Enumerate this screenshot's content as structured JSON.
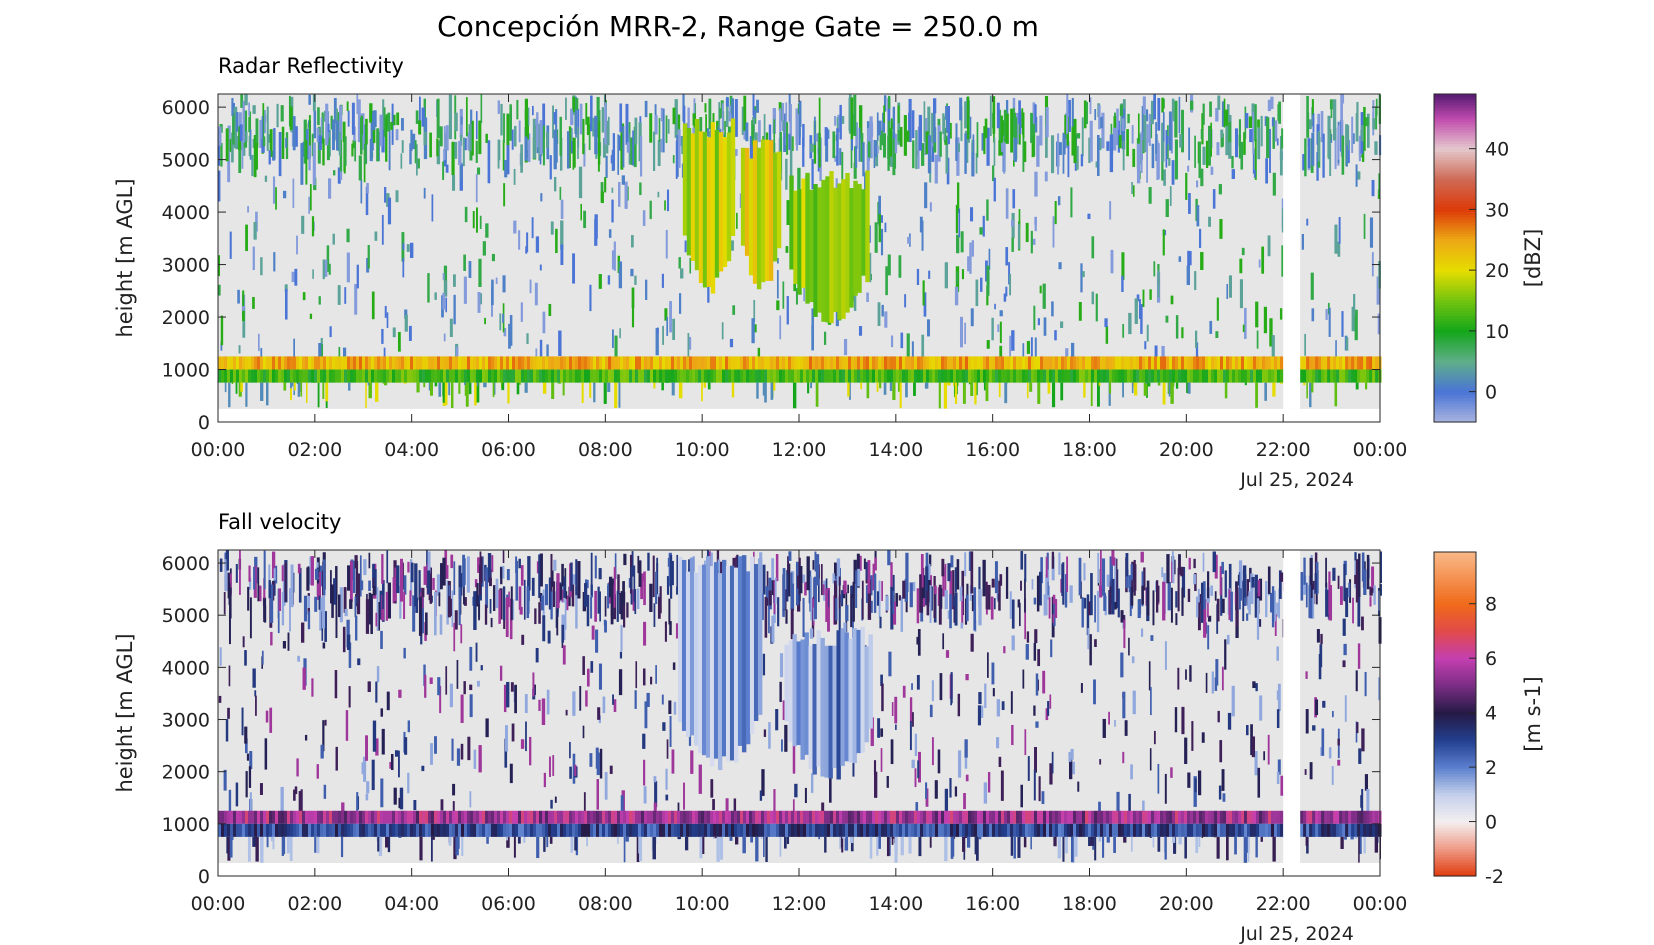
{
  "figure_title": "Concepción MRR-2, Range Gate = 250.0 m",
  "chart_data": [
    {
      "type": "heatmap",
      "title": "Radar Reflectivity",
      "ylabel": "height [m AGL]",
      "ylim": [
        0,
        6250
      ],
      "yticks": [
        0,
        1000,
        2000,
        3000,
        4000,
        5000,
        6000
      ],
      "xlim_hours": [
        0,
        24
      ],
      "xtick_labels": [
        "00:00",
        "02:00",
        "04:00",
        "06:00",
        "08:00",
        "10:00",
        "12:00",
        "14:00",
        "16:00",
        "18:00",
        "20:00",
        "22:00",
        "00:00"
      ],
      "date_label": "Jul 25, 2024",
      "colorbar": {
        "label": "[dBZ]",
        "range": [
          -5,
          49
        ],
        "ticks": [
          0,
          10,
          20,
          30,
          40
        ],
        "colors": [
          [
            -5,
            "#a9b4df"
          ],
          [
            0,
            "#4a74d6"
          ],
          [
            5,
            "#5fae8a"
          ],
          [
            10,
            "#14a61a"
          ],
          [
            15,
            "#73c40f"
          ],
          [
            20,
            "#e6dc00"
          ],
          [
            25,
            "#eda815"
          ],
          [
            30,
            "#dd3a08"
          ],
          [
            35,
            "#ce6a55"
          ],
          [
            40,
            "#e4c8cc"
          ],
          [
            45,
            "#c04aae"
          ],
          [
            49,
            "#551a72"
          ]
        ]
      },
      "features": [
        {
          "kind": "melting_layer",
          "x": [
            0,
            22
          ],
          "y": [
            1000,
            1250
          ],
          "value": 24
        },
        {
          "kind": "melting_layer",
          "x": [
            22.35,
            24
          ],
          "y": [
            1000,
            1250
          ],
          "value": 24
        },
        {
          "kind": "rain_below_melting",
          "x": [
            0,
            22
          ],
          "y": [
            750,
            1000
          ],
          "value": 12
        },
        {
          "kind": "rain_below_melting",
          "x": [
            22.35,
            24
          ],
          "y": [
            750,
            1000
          ],
          "value": 12
        },
        {
          "kind": "precip_band",
          "x": [
            9.6,
            10.6
          ],
          "y": [
            2400,
            5800
          ],
          "value": 18
        },
        {
          "kind": "precip_band",
          "x": [
            10.8,
            11.6
          ],
          "y": [
            2400,
            5400
          ],
          "value": 20
        },
        {
          "kind": "precip_band",
          "x": [
            11.8,
            13.4
          ],
          "y": [
            1800,
            4800
          ],
          "value": 16
        },
        {
          "kind": "data_gap",
          "x": [
            22.0,
            22.35
          ],
          "y": [
            250,
            6250
          ]
        }
      ]
    },
    {
      "type": "heatmap",
      "title": "Fall velocity",
      "ylabel": "height [m AGL]",
      "ylim": [
        0,
        6250
      ],
      "yticks": [
        0,
        1000,
        2000,
        3000,
        4000,
        5000,
        6000
      ],
      "xlim_hours": [
        0,
        24
      ],
      "xtick_labels": [
        "00:00",
        "02:00",
        "04:00",
        "06:00",
        "08:00",
        "10:00",
        "12:00",
        "14:00",
        "16:00",
        "18:00",
        "20:00",
        "22:00",
        "00:00"
      ],
      "date_label": "Jul 25, 2024",
      "colorbar": {
        "label": "[m s-1]",
        "range": [
          -2,
          9.9
        ],
        "ticks": [
          -2,
          0,
          2,
          4,
          6,
          8
        ],
        "colors": [
          [
            -2,
            "#e03a0c"
          ],
          [
            -1,
            "#ee9a86"
          ],
          [
            0,
            "#f4efef"
          ],
          [
            1,
            "#c4d0ec"
          ],
          [
            2,
            "#5b7fce"
          ],
          [
            3,
            "#233f8e"
          ],
          [
            4,
            "#251a45"
          ],
          [
            5,
            "#7a2d84"
          ],
          [
            6,
            "#c43fb0"
          ],
          [
            7,
            "#e24a4a"
          ],
          [
            8,
            "#f06a1a"
          ],
          [
            9.9,
            "#f8b888"
          ]
        ]
      },
      "features": [
        {
          "kind": "melting_layer",
          "x": [
            0,
            22
          ],
          "y": [
            1000,
            1250
          ],
          "value": 5.5
        },
        {
          "kind": "melting_layer",
          "x": [
            22.35,
            24
          ],
          "y": [
            1000,
            1250
          ],
          "value": 5.5
        },
        {
          "kind": "rain_below_melting",
          "x": [
            0,
            22
          ],
          "y": [
            750,
            1000
          ],
          "value": 3
        },
        {
          "kind": "rain_below_melting",
          "x": [
            22.35,
            24
          ],
          "y": [
            750,
            1000
          ],
          "value": 3
        },
        {
          "kind": "precip_band",
          "x": [
            9.5,
            11.2
          ],
          "y": [
            2000,
            6200
          ],
          "value": 1.4
        },
        {
          "kind": "precip_band",
          "x": [
            11.7,
            13.5
          ],
          "y": [
            1800,
            4800
          ],
          "value": 1.8
        },
        {
          "kind": "data_gap",
          "x": [
            22.0,
            22.35
          ],
          "y": [
            250,
            6250
          ]
        }
      ]
    }
  ]
}
